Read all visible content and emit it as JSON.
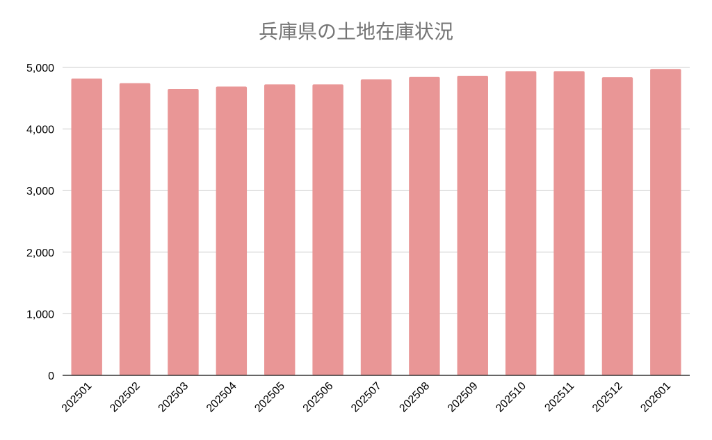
{
  "chart_data": {
    "type": "bar",
    "title": "兵庫県の土地在庫状況",
    "xlabel": "",
    "ylabel": "",
    "categories": [
      "202501",
      "202502",
      "202503",
      "202504",
      "202505",
      "202506",
      "202507",
      "202508",
      "202509",
      "202510",
      "202511",
      "202512",
      "202601"
    ],
    "values": [
      4820,
      4745,
      4650,
      4690,
      4725,
      4725,
      4805,
      4845,
      4865,
      4940,
      4940,
      4840,
      4975
    ],
    "ylim": [
      0,
      5000
    ],
    "yticks": [
      0,
      1000,
      2000,
      3000,
      4000,
      5000
    ],
    "ytick_labels": [
      "0",
      "1,000",
      "2,000",
      "3,000",
      "4,000",
      "5,000"
    ],
    "grid": true,
    "legend": "none",
    "colors": {
      "bar": "#e99696",
      "grid": "#cccccc",
      "axis": "#333333",
      "title": "#757575",
      "tick_text": "#000000"
    }
  }
}
